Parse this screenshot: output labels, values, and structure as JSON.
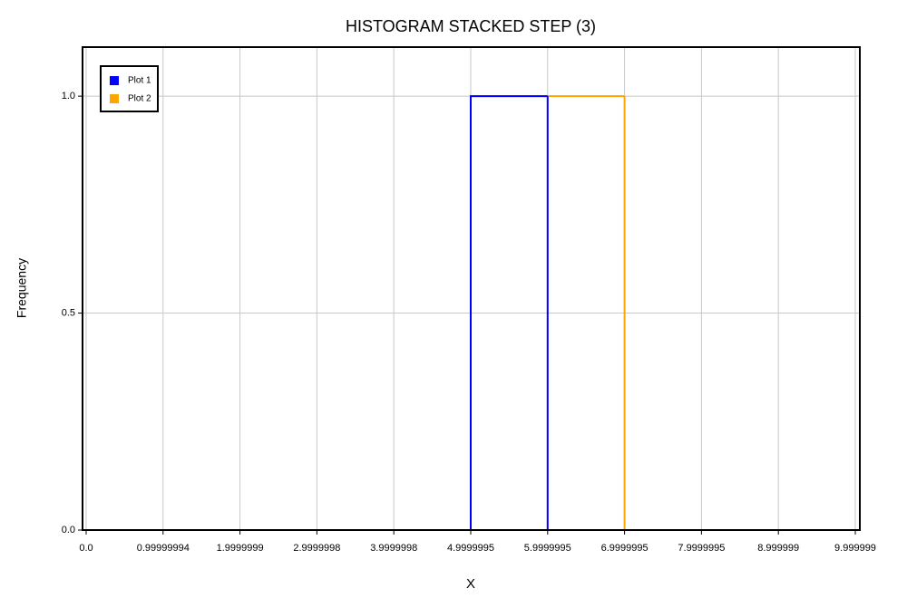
{
  "chart_data": {
    "type": "histogram",
    "title": "HISTOGRAM STACKED STEP (3)",
    "x_label": "X",
    "y_label": "Frequency",
    "bins": [
      0,
      1,
      2,
      3,
      4,
      5,
      6,
      7,
      8,
      9,
      10
    ],
    "stacked": true,
    "histtype": "step",
    "series": [
      {
        "name": "Plot 1",
        "color": "#0000ff",
        "values": [
          0,
          0,
          0,
          0,
          0,
          1,
          0,
          0,
          0,
          0
        ]
      },
      {
        "name": "Plot 2",
        "color": "#ffa500",
        "values": [
          0,
          0,
          0,
          0,
          0,
          0,
          1,
          0,
          0,
          0
        ]
      }
    ],
    "xlim": [
      -0.047,
      10.059
    ],
    "ylim": [
      0,
      1.113
    ],
    "xticks": [
      {
        "value": 0,
        "label": "0.0"
      },
      0.99999994,
      1.9999999,
      2.9999998,
      3.9999998,
      4.9999995,
      5.9999995,
      6.9999995,
      7.9999995,
      8.999999,
      9.999999
    ],
    "yticks": [
      {
        "value": 0,
        "label": "0.0"
      },
      0.5,
      {
        "value": 1,
        "label": "1.0"
      }
    ],
    "grid": true,
    "legend": "upper left"
  }
}
